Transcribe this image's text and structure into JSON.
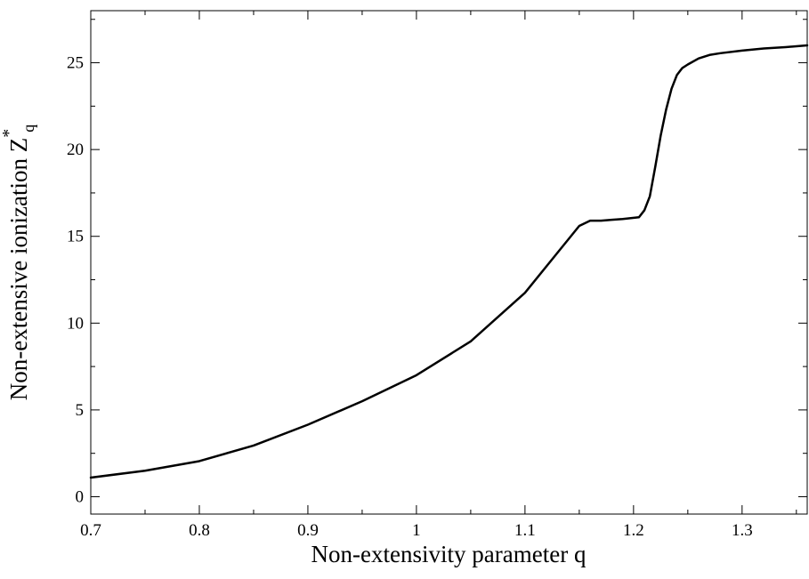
{
  "chart_data": {
    "type": "line",
    "xlabel": "Non-extensivity parameter q",
    "ylabel": {
      "main": "Non-extensive ionization  Z",
      "superscript": "*",
      "subscript": "q"
    },
    "xlim": [
      0.7,
      1.36
    ],
    "ylim": [
      -1,
      28
    ],
    "xticks": [
      0.7,
      0.8,
      0.9,
      1.0,
      1.1,
      1.2,
      1.3
    ],
    "xtick_labels": [
      "0.7",
      "0.8",
      "0.9",
      "1",
      "1.1",
      "1.2",
      "1.3"
    ],
    "yticks": [
      0,
      5,
      10,
      15,
      20,
      25
    ],
    "ytick_labels": [
      "0",
      "5",
      "10",
      "15",
      "20",
      "25"
    ],
    "grid": false,
    "legend": "none",
    "series": [
      {
        "color": "#000000",
        "x": [
          0.7,
          0.75,
          0.8,
          0.85,
          0.9,
          0.95,
          1.0,
          1.05,
          1.1,
          1.15,
          1.16,
          1.17,
          1.18,
          1.19,
          1.205,
          1.21,
          1.215,
          1.22,
          1.225,
          1.23,
          1.235,
          1.24,
          1.245,
          1.25,
          1.26,
          1.27,
          1.28,
          1.3,
          1.32,
          1.34,
          1.36
        ],
        "y": [
          1.1,
          1.5,
          2.05,
          2.95,
          4.15,
          5.5,
          7.0,
          8.95,
          11.75,
          15.6,
          15.9,
          15.9,
          15.95,
          16.0,
          16.1,
          16.5,
          17.3,
          19.0,
          20.8,
          22.3,
          23.5,
          24.3,
          24.7,
          24.9,
          25.25,
          25.45,
          25.55,
          25.7,
          25.82,
          25.9,
          26.0
        ]
      }
    ]
  }
}
